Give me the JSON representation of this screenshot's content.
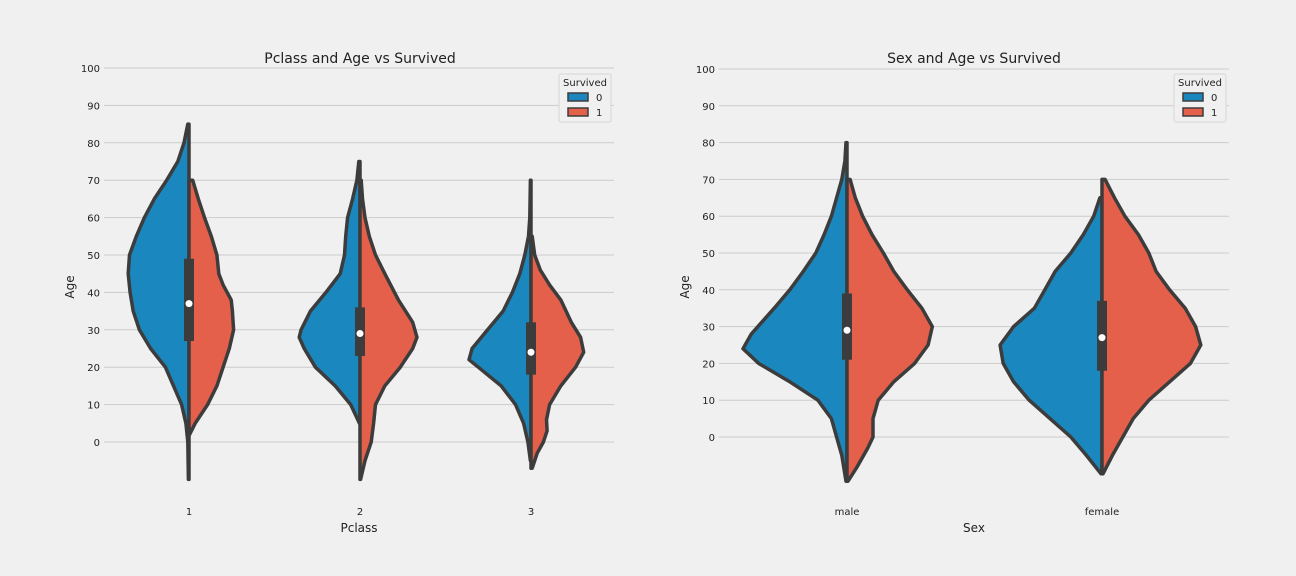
{
  "colors": {
    "survived_0": "#1b87bf",
    "survived_1": "#e5604a",
    "outline": "#3c3c3c",
    "background": "#f0f0f0",
    "grid": "#cbcbcb"
  },
  "chart_data": [
    {
      "type": "violin",
      "title": "Pclass and Age vs Survived",
      "xlabel": "Pclass",
      "ylabel": "Age",
      "ylim": [
        0,
        100
      ],
      "yticks": [
        "0",
        "10",
        "20",
        "30",
        "40",
        "50",
        "60",
        "70",
        "80",
        "90",
        "100"
      ],
      "categories": [
        "1",
        "2",
        "3"
      ],
      "split": true,
      "grid": true,
      "legend": {
        "title": "Survived",
        "entries": [
          "0",
          "1"
        ],
        "placement": "top-right"
      },
      "series": [
        {
          "name": "0",
          "color": "#1b87bf",
          "violins": [
            {
              "profile": [
                [
                  -10,
                  0.01
                ],
                [
                  0,
                  0.02
                ],
                [
                  5,
                  0.05
                ],
                [
                  10,
                  0.12
                ],
                [
                  20,
                  0.38
                ],
                [
                  25,
                  0.62
                ],
                [
                  30,
                  0.8
                ],
                [
                  35,
                  0.9
                ],
                [
                  40,
                  0.95
                ],
                [
                  45,
                  0.98
                ],
                [
                  50,
                  0.96
                ],
                [
                  55,
                  0.85
                ],
                [
                  60,
                  0.72
                ],
                [
                  65,
                  0.56
                ],
                [
                  70,
                  0.36
                ],
                [
                  75,
                  0.18
                ],
                [
                  80,
                  0.08
                ],
                [
                  85,
                  0.02
                ]
              ]
            },
            {
              "profile": [
                [
                  5,
                  0.01
                ],
                [
                  10,
                  0.15
                ],
                [
                  15,
                  0.4
                ],
                [
                  20,
                  0.72
                ],
                [
                  25,
                  0.9
                ],
                [
                  28,
                  0.98
                ],
                [
                  30,
                  0.95
                ],
                [
                  35,
                  0.8
                ],
                [
                  40,
                  0.55
                ],
                [
                  45,
                  0.32
                ],
                [
                  50,
                  0.25
                ],
                [
                  55,
                  0.23
                ],
                [
                  60,
                  0.2
                ],
                [
                  65,
                  0.12
                ],
                [
                  70,
                  0.05
                ],
                [
                  75,
                  0.02
                ]
              ]
            },
            {
              "profile": [
                [
                  -5,
                  0.01
                ],
                [
                  0,
                  0.05
                ],
                [
                  5,
                  0.12
                ],
                [
                  10,
                  0.25
                ],
                [
                  15,
                  0.48
                ],
                [
                  20,
                  0.85
                ],
                [
                  22,
                  1.0
                ],
                [
                  25,
                  0.95
                ],
                [
                  30,
                  0.7
                ],
                [
                  35,
                  0.45
                ],
                [
                  40,
                  0.3
                ],
                [
                  45,
                  0.18
                ],
                [
                  50,
                  0.1
                ],
                [
                  55,
                  0.04
                ],
                [
                  60,
                  0.02
                ],
                [
                  70,
                  0.01
                ]
              ]
            }
          ]
        },
        {
          "name": "1",
          "color": "#e5604a",
          "violins": [
            {
              "profile": [
                [
                  2,
                  0.01
                ],
                [
                  5,
                  0.1
                ],
                [
                  10,
                  0.3
                ],
                [
                  15,
                  0.45
                ],
                [
                  20,
                  0.55
                ],
                [
                  25,
                  0.65
                ],
                [
                  30,
                  0.72
                ],
                [
                  35,
                  0.7
                ],
                [
                  38,
                  0.68
                ],
                [
                  42,
                  0.55
                ],
                [
                  45,
                  0.48
                ],
                [
                  50,
                  0.45
                ],
                [
                  55,
                  0.36
                ],
                [
                  60,
                  0.25
                ],
                [
                  65,
                  0.15
                ],
                [
                  70,
                  0.06
                ]
              ]
            },
            {
              "profile": [
                [
                  -10,
                  0.01
                ],
                [
                  -5,
                  0.08
                ],
                [
                  0,
                  0.18
                ],
                [
                  5,
                  0.22
                ],
                [
                  10,
                  0.25
                ],
                [
                  15,
                  0.4
                ],
                [
                  20,
                  0.65
                ],
                [
                  25,
                  0.85
                ],
                [
                  28,
                  0.92
                ],
                [
                  32,
                  0.85
                ],
                [
                  38,
                  0.62
                ],
                [
                  45,
                  0.4
                ],
                [
                  50,
                  0.25
                ],
                [
                  55,
                  0.15
                ],
                [
                  60,
                  0.08
                ],
                [
                  65,
                  0.04
                ],
                [
                  70,
                  0.02
                ]
              ]
            },
            {
              "profile": [
                [
                  -7,
                  0.02
                ],
                [
                  -3,
                  0.1
                ],
                [
                  0,
                  0.2
                ],
                [
                  3,
                  0.26
                ],
                [
                  6,
                  0.25
                ],
                [
                  10,
                  0.3
                ],
                [
                  15,
                  0.48
                ],
                [
                  20,
                  0.72
                ],
                [
                  24,
                  0.85
                ],
                [
                  28,
                  0.8
                ],
                [
                  32,
                  0.65
                ],
                [
                  38,
                  0.48
                ],
                [
                  42,
                  0.3
                ],
                [
                  46,
                  0.15
                ],
                [
                  50,
                  0.06
                ],
                [
                  55,
                  0.02
                ]
              ]
            }
          ]
        }
      ],
      "boxes": [
        {
          "category": "1",
          "q1": 27,
          "median": 37,
          "q3": 49
        },
        {
          "category": "2",
          "q1": 23,
          "median": 29,
          "q3": 36
        },
        {
          "category": "3",
          "q1": 18,
          "median": 24,
          "q3": 32
        }
      ]
    },
    {
      "type": "violin",
      "title": "Sex and Age vs Survived",
      "xlabel": "Sex",
      "ylabel": "Age",
      "ylim": [
        0,
        100
      ],
      "yticks": [
        "0",
        "10",
        "20",
        "30",
        "40",
        "50",
        "60",
        "70",
        "80",
        "90",
        "100"
      ],
      "categories": [
        "male",
        "female"
      ],
      "split": true,
      "grid": true,
      "legend": {
        "title": "Survived",
        "entries": [
          "0",
          "1"
        ],
        "placement": "top-right"
      },
      "series": [
        {
          "name": "0",
          "color": "#1b87bf",
          "violins": [
            {
              "profile": [
                [
                  -12,
                  0.01
                ],
                [
                  -5,
                  0.05
                ],
                [
                  0,
                  0.1
                ],
                [
                  5,
                  0.15
                ],
                [
                  10,
                  0.28
                ],
                [
                  15,
                  0.55
                ],
                [
                  20,
                  0.85
                ],
                [
                  24,
                  1.0
                ],
                [
                  28,
                  0.92
                ],
                [
                  35,
                  0.7
                ],
                [
                  40,
                  0.55
                ],
                [
                  45,
                  0.42
                ],
                [
                  50,
                  0.3
                ],
                [
                  55,
                  0.22
                ],
                [
                  60,
                  0.15
                ],
                [
                  65,
                  0.1
                ],
                [
                  70,
                  0.05
                ],
                [
                  75,
                  0.02
                ],
                [
                  80,
                  0.01
                ]
              ]
            },
            {
              "profile": [
                [
                  -10,
                  0.01
                ],
                [
                  -5,
                  0.15
                ],
                [
                  0,
                  0.3
                ],
                [
                  5,
                  0.5
                ],
                [
                  10,
                  0.7
                ],
                [
                  15,
                  0.85
                ],
                [
                  20,
                  0.95
                ],
                [
                  25,
                  0.98
                ],
                [
                  30,
                  0.85
                ],
                [
                  35,
                  0.65
                ],
                [
                  40,
                  0.55
                ],
                [
                  45,
                  0.45
                ],
                [
                  50,
                  0.3
                ],
                [
                  55,
                  0.18
                ],
                [
                  60,
                  0.08
                ],
                [
                  65,
                  0.02
                ]
              ]
            }
          ]
        },
        {
          "name": "1",
          "color": "#e5604a",
          "violins": [
            {
              "profile": [
                [
                  -12,
                  0.01
                ],
                [
                  -8,
                  0.1
                ],
                [
                  -3,
                  0.2
                ],
                [
                  0,
                  0.25
                ],
                [
                  5,
                  0.25
                ],
                [
                  10,
                  0.3
                ],
                [
                  15,
                  0.45
                ],
                [
                  20,
                  0.65
                ],
                [
                  25,
                  0.78
                ],
                [
                  30,
                  0.82
                ],
                [
                  35,
                  0.72
                ],
                [
                  40,
                  0.58
                ],
                [
                  45,
                  0.45
                ],
                [
                  50,
                  0.35
                ],
                [
                  55,
                  0.24
                ],
                [
                  60,
                  0.15
                ],
                [
                  65,
                  0.08
                ],
                [
                  70,
                  0.03
                ]
              ]
            },
            {
              "profile": [
                [
                  -10,
                  0.01
                ],
                [
                  -5,
                  0.1
                ],
                [
                  0,
                  0.2
                ],
                [
                  5,
                  0.3
                ],
                [
                  10,
                  0.45
                ],
                [
                  15,
                  0.65
                ],
                [
                  20,
                  0.85
                ],
                [
                  25,
                  0.95
                ],
                [
                  30,
                  0.9
                ],
                [
                  35,
                  0.8
                ],
                [
                  40,
                  0.65
                ],
                [
                  45,
                  0.52
                ],
                [
                  50,
                  0.45
                ],
                [
                  55,
                  0.35
                ],
                [
                  60,
                  0.22
                ],
                [
                  65,
                  0.12
                ],
                [
                  70,
                  0.03
                ]
              ]
            }
          ]
        }
      ],
      "boxes": [
        {
          "category": "male",
          "q1": 21,
          "median": 29,
          "q3": 39
        },
        {
          "category": "female",
          "q1": 18,
          "median": 27,
          "q3": 37
        }
      ]
    }
  ]
}
